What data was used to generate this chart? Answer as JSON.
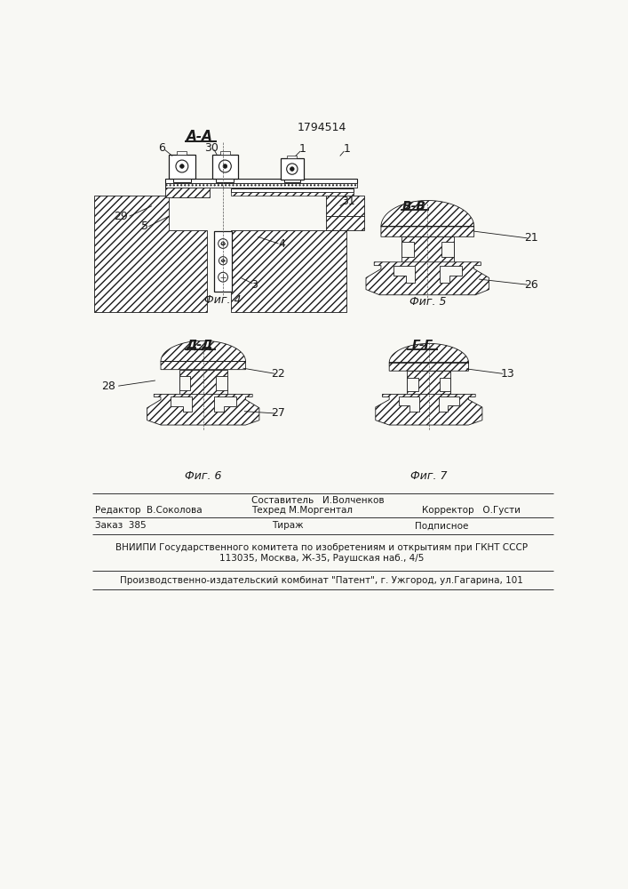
{
  "patent_number": "1794514",
  "section_label_AA": "А-А",
  "section_label_BB": "В-В",
  "section_label_DD": "Д-Д",
  "section_label_GG": "Г-Г",
  "fig4_label": "Фиг. 4",
  "fig5_label": "Фиг. 5",
  "fig6_label": "Фиг. 6",
  "fig7_label": "Фиг. 7",
  "footer_line1_left": "Редактор  В.Соколова",
  "footer_line1_mid1": "Составитель   И.Волченков",
  "footer_line1_mid2": "Техред М.Моргентал",
  "footer_line1_right1": "Корректор   О.Густи",
  "footer_line2_left": "Заказ  385",
  "footer_line2_mid": "Тираж",
  "footer_line2_right": "Подписное",
  "footer_line3": "ВНИИПИ Государственного комитета по изобретениям и открытиям при ГКНТ СССР",
  "footer_line4": "113035, Москва, Ж-35, Раушская наб., 4/5",
  "footer_line5": "Производственно-издательский комбинат \"Патент\", г. Ужгород, ул.Гагарина, 101",
  "bg_color": "#f8f8f4",
  "line_color": "#1a1a1a"
}
